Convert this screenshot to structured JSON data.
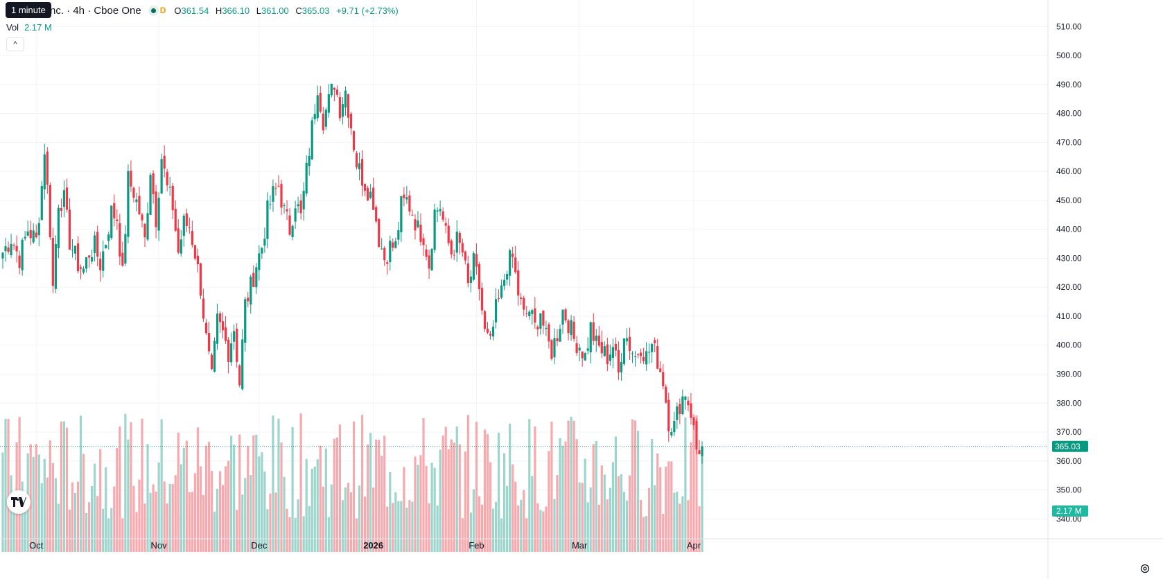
{
  "header": {
    "tooltip": "1 minute",
    "symbol": "nc. · 4h · Cboe One",
    "badge_letter": "D",
    "open_label": "O",
    "open": "361.54",
    "high_label": "H",
    "high": "366.10",
    "low_label": "L",
    "low": "361.00",
    "close_label": "C",
    "close": "365.03",
    "change": "+9.71 (+2.73%)"
  },
  "volume": {
    "label": "Vol",
    "value": "2.17 M"
  },
  "price_tag": "365.03",
  "volume_tag": "2.17 M",
  "colors": {
    "up": "#089981",
    "down": "#f23645",
    "up_vol": "#9dd5cd",
    "down_vol": "#f7a9ae",
    "grid": "#f0f3fa"
  },
  "icons": {
    "logo": "tradingview-logo-icon",
    "settings": "gear-icon",
    "collapse": "chevron-up-icon"
  },
  "chart_data": {
    "type": "candlestick",
    "interval": "4h",
    "ylim": [
      336,
      512
    ],
    "y_ticks": [
      "510.00",
      "500.00",
      "490.00",
      "480.00",
      "470.00",
      "460.00",
      "450.00",
      "440.00",
      "430.00",
      "420.00",
      "410.00",
      "400.00",
      "390.00",
      "380.00",
      "370.00",
      "360.00",
      "350.00",
      "340.00"
    ],
    "y_tick_values": [
      510,
      500,
      490,
      480,
      470,
      460,
      450,
      440,
      430,
      420,
      410,
      400,
      390,
      380,
      370,
      360,
      350,
      340
    ],
    "x_ticks": [
      {
        "label": "Oct",
        "index": 12
      },
      {
        "label": "Nov",
        "index": 56
      },
      {
        "label": "Dec",
        "index": 92
      },
      {
        "label": "2026",
        "index": 133
      },
      {
        "label": "Feb",
        "index": 170
      },
      {
        "label": "Mar",
        "index": 207
      },
      {
        "label": "Apr",
        "index": 248
      }
    ],
    "bar_count": 252,
    "last_price": 365.03,
    "anchors": [
      [
        0,
        432
      ],
      [
        3,
        437
      ],
      [
        6,
        430
      ],
      [
        9,
        440
      ],
      [
        12,
        436
      ],
      [
        14,
        455
      ],
      [
        15,
        468
      ],
      [
        17,
        440
      ],
      [
        18,
        420
      ],
      [
        20,
        450
      ],
      [
        22,
        450
      ],
      [
        24,
        436
      ],
      [
        27,
        428
      ],
      [
        29,
        426
      ],
      [
        31,
        432
      ],
      [
        33,
        434
      ],
      [
        35,
        428
      ],
      [
        37,
        436
      ],
      [
        39,
        446
      ],
      [
        41,
        444
      ],
      [
        43,
        424
      ],
      [
        45,
        457
      ],
      [
        47,
        453
      ],
      [
        49,
        446
      ],
      [
        51,
        436
      ],
      [
        53,
        461
      ],
      [
        55,
        444
      ],
      [
        57,
        465
      ],
      [
        59,
        454
      ],
      [
        61,
        448
      ],
      [
        63,
        432
      ],
      [
        65,
        442
      ],
      [
        67,
        441
      ],
      [
        69,
        432
      ],
      [
        71,
        420
      ],
      [
        73,
        402
      ],
      [
        75,
        388
      ],
      [
        77,
        408
      ],
      [
        79,
        404
      ],
      [
        81,
        398
      ],
      [
        83,
        406
      ],
      [
        85,
        387
      ],
      [
        87,
        414
      ],
      [
        89,
        420
      ],
      [
        91,
        428
      ],
      [
        93,
        434
      ],
      [
        95,
        446
      ],
      [
        97,
        452
      ],
      [
        99,
        455
      ],
      [
        101,
        446
      ],
      [
        103,
        440
      ],
      [
        105,
        450
      ],
      [
        107,
        444
      ],
      [
        109,
        460
      ],
      [
        111,
        475
      ],
      [
        113,
        490
      ],
      [
        115,
        478
      ],
      [
        117,
        484
      ],
      [
        119,
        491
      ],
      [
        121,
        482
      ],
      [
        123,
        488
      ],
      [
        125,
        476
      ],
      [
        127,
        463
      ],
      [
        129,
        458
      ],
      [
        131,
        454
      ],
      [
        133,
        450
      ],
      [
        135,
        437
      ],
      [
        137,
        430
      ],
      [
        139,
        434
      ],
      [
        141,
        434
      ],
      [
        143,
        448
      ],
      [
        145,
        450
      ],
      [
        147,
        446
      ],
      [
        149,
        440
      ],
      [
        151,
        438
      ],
      [
        153,
        428
      ],
      [
        155,
        446
      ],
      [
        157,
        448
      ],
      [
        159,
        438
      ],
      [
        161,
        432
      ],
      [
        163,
        436
      ],
      [
        165,
        432
      ],
      [
        167,
        420
      ],
      [
        169,
        428
      ],
      [
        171,
        420
      ],
      [
        173,
        404
      ],
      [
        175,
        400
      ],
      [
        177,
        412
      ],
      [
        179,
        418
      ],
      [
        181,
        428
      ],
      [
        183,
        430
      ],
      [
        185,
        418
      ],
      [
        187,
        410
      ],
      [
        189,
        412
      ],
      [
        191,
        406
      ],
      [
        193,
        412
      ],
      [
        195,
        402
      ],
      [
        197,
        398
      ],
      [
        199,
        404
      ],
      [
        201,
        412
      ],
      [
        203,
        408
      ],
      [
        205,
        402
      ],
      [
        207,
        400
      ],
      [
        209,
        396
      ],
      [
        211,
        406
      ],
      [
        213,
        400
      ],
      [
        215,
        398
      ],
      [
        217,
        396
      ],
      [
        219,
        400
      ],
      [
        221,
        390
      ],
      [
        223,
        405
      ],
      [
        225,
        400
      ],
      [
        227,
        396
      ],
      [
        229,
        400
      ],
      [
        231,
        396
      ],
      [
        233,
        400
      ],
      [
        235,
        395
      ],
      [
        237,
        388
      ],
      [
        239,
        374
      ],
      [
        241,
        372
      ],
      [
        243,
        380
      ],
      [
        245,
        384
      ],
      [
        247,
        377
      ],
      [
        249,
        364
      ],
      [
        251,
        365.03
      ]
    ],
    "volume_scale_max": 3.0
  }
}
